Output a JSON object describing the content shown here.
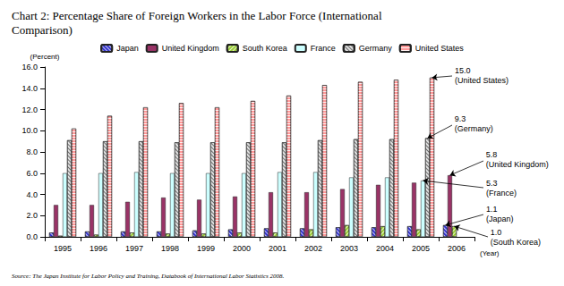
{
  "chart_data": {
    "type": "bar",
    "title": "Chart 2: Percentage Share of Foreign Workers in the Labor Force (International Comparison)",
    "source": "Source: The Japan Institute for Labor Policy and Training, Databook of International Labor Statistics 2008.",
    "ylabel": "(Percent)",
    "xlabel": "(Year)",
    "categories": [
      "1995",
      "1996",
      "1997",
      "1998",
      "1999",
      "2000",
      "2001",
      "2002",
      "2003",
      "2004",
      "2005",
      "2006"
    ],
    "series": [
      {
        "name": "Japan",
        "color": "#3333cc",
        "values": [
          0.4,
          0.5,
          0.5,
          0.5,
          0.6,
          0.7,
          0.8,
          0.8,
          0.9,
          0.9,
          1.0,
          1.1
        ]
      },
      {
        "name": "United Kingdom",
        "color": "#993366",
        "values": [
          3.0,
          3.0,
          3.3,
          3.7,
          3.5,
          3.8,
          4.2,
          4.2,
          4.5,
          4.9,
          5.1,
          5.8
        ]
      },
      {
        "name": "South Korea",
        "color": "#99cc33",
        "values": [
          0.1,
          0.2,
          0.4,
          0.3,
          0.3,
          0.4,
          0.4,
          0.7,
          1.1,
          1.0,
          0.7,
          1.0
        ]
      },
      {
        "name": "France",
        "color": "#ccffff",
        "values": [
          6.0,
          6.0,
          6.1,
          6.0,
          6.0,
          6.0,
          6.1,
          6.1,
          5.6,
          5.6,
          5.3,
          null
        ]
      },
      {
        "name": "Germany",
        "color": "#e0e0e0",
        "values": [
          9.1,
          9.0,
          9.0,
          8.9,
          8.9,
          8.9,
          8.9,
          9.1,
          9.2,
          9.2,
          9.3,
          null
        ]
      },
      {
        "name": "United States",
        "color": "#ff9999",
        "values": [
          10.2,
          11.4,
          12.2,
          12.6,
          12.2,
          12.8,
          13.3,
          14.3,
          14.6,
          14.8,
          15.0,
          null
        ]
      }
    ],
    "ylim": [
      0,
      16
    ],
    "yticks": [
      {
        "value": 0,
        "label": "0.0"
      },
      {
        "value": 2,
        "label": "2.0"
      },
      {
        "value": 4,
        "label": "4.0"
      },
      {
        "value": 6,
        "label": "6.0"
      },
      {
        "value": 8,
        "label": "8.0"
      },
      {
        "value": 10,
        "label": "10.0"
      },
      {
        "value": 12,
        "label": "12.0"
      },
      {
        "value": 14,
        "label": "14.0"
      },
      {
        "value": 16,
        "label": "16.0"
      }
    ],
    "grid": false,
    "legend": "top",
    "annotations": [
      {
        "series": "United States",
        "category": "2005",
        "text": [
          "15.0",
          "(United States)"
        ]
      },
      {
        "series": "Germany",
        "category": "2005",
        "text": [
          "9.3",
          "(Germany)"
        ]
      },
      {
        "series": "United Kingdom",
        "category": "2006",
        "text": [
          "5.8",
          "(United Kingdom)"
        ]
      },
      {
        "series": "France",
        "category": "2005",
        "text": [
          "5.3",
          "(France)"
        ]
      },
      {
        "series": "Japan",
        "category": "2006",
        "text": [
          "1.1",
          "(Japan)"
        ]
      },
      {
        "series": "South Korea",
        "category": "2006",
        "text": [
          "1.0",
          "(South Korea)"
        ]
      }
    ]
  }
}
